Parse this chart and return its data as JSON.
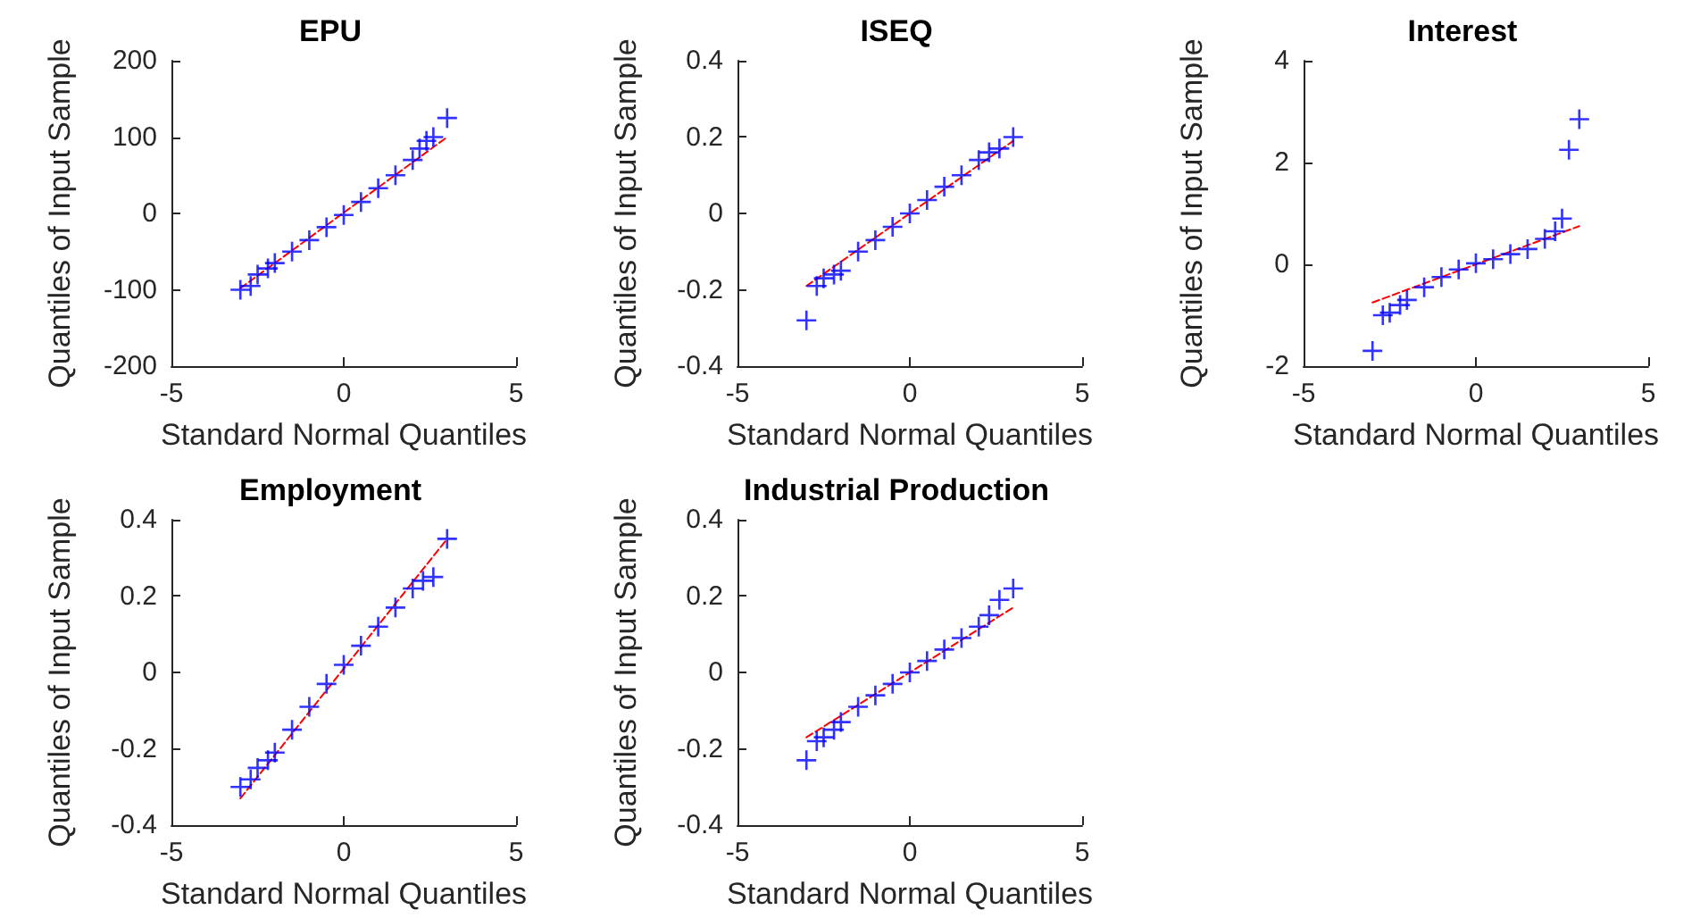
{
  "chart_data": [
    {
      "type": "scatter",
      "title": "EPU",
      "xlabel": "Standard Normal Quantiles",
      "ylabel": "Quantiles of Input Sample",
      "xlim": [
        -5,
        5
      ],
      "xticks": [
        -5,
        0,
        5
      ],
      "ylim": [
        -200,
        200
      ],
      "yticks": [
        -200,
        -100,
        0,
        100,
        200
      ],
      "marker": "cross",
      "series": [
        {
          "color": "#0000ff",
          "x": [
            -3,
            -2.7,
            -2.5,
            -2.2,
            -2,
            -1.5,
            -1,
            -0.5,
            0,
            0.5,
            1,
            1.5,
            2,
            2.2,
            2.4,
            2.6,
            3
          ],
          "values": [
            -100,
            -95,
            -80,
            -72,
            -65,
            -50,
            -35,
            -18,
            -2,
            15,
            33,
            50,
            70,
            85,
            95,
            100,
            125
          ]
        },
        {
          "type": "line",
          "color": "#ff0000",
          "line_style": "dashed",
          "marker": "none",
          "x": [
            -3,
            3
          ],
          "values": [
            -98,
            100
          ]
        }
      ]
    },
    {
      "type": "scatter",
      "title": "ISEQ",
      "xlabel": "Standard Normal Quantiles",
      "ylabel": "Quantiles of Input Sample",
      "xlim": [
        -5,
        5
      ],
      "xticks": [
        -5,
        0,
        5
      ],
      "ylim": [
        -0.4,
        0.4
      ],
      "yticks": [
        -0.4,
        -0.2,
        0,
        0.2,
        0.4
      ],
      "marker": "cross",
      "series": [
        {
          "color": "#0000ff",
          "x": [
            -3,
            -2.7,
            -2.5,
            -2.2,
            -2,
            -1.5,
            -1,
            -0.5,
            0,
            0.5,
            1,
            1.5,
            2,
            2.3,
            2.6,
            3
          ],
          "values": [
            -0.28,
            -0.19,
            -0.17,
            -0.16,
            -0.15,
            -0.1,
            -0.07,
            -0.035,
            0,
            0.035,
            0.07,
            0.1,
            0.14,
            0.16,
            0.17,
            0.2
          ]
        },
        {
          "type": "line",
          "color": "#ff0000",
          "line_style": "dashed",
          "marker": "none",
          "x": [
            -3,
            3
          ],
          "values": [
            -0.19,
            0.19
          ]
        }
      ]
    },
    {
      "type": "scatter",
      "title": "Interest",
      "xlabel": "Standard Normal Quantiles",
      "ylabel": "Quantiles of Input Sample",
      "xlim": [
        -5,
        5
      ],
      "xticks": [
        -5,
        0,
        5
      ],
      "ylim": [
        -2,
        4
      ],
      "yticks": [
        -2,
        0,
        2,
        4
      ],
      "marker": "cross",
      "series": [
        {
          "color": "#0000ff",
          "x": [
            -3,
            -2.7,
            -2.5,
            -2.2,
            -2,
            -1.5,
            -1,
            -0.5,
            0,
            0.5,
            1,
            1.5,
            2,
            2.3,
            2.5,
            2.7,
            3
          ],
          "values": [
            -1.7,
            -1,
            -0.95,
            -0.8,
            -0.7,
            -0.45,
            -0.25,
            -0.1,
            0.02,
            0.1,
            0.2,
            0.3,
            0.5,
            0.65,
            0.9,
            2.25,
            2.85
          ]
        },
        {
          "type": "line",
          "color": "#ff0000",
          "line_style": "dashed",
          "marker": "none",
          "x": [
            -3,
            3
          ],
          "values": [
            -0.75,
            0.75
          ]
        }
      ]
    },
    {
      "type": "scatter",
      "title": "Employment",
      "xlabel": "Standard Normal Quantiles",
      "ylabel": "Quantiles of Input Sample",
      "xlim": [
        -5,
        5
      ],
      "xticks": [
        -5,
        0,
        5
      ],
      "ylim": [
        -0.4,
        0.4
      ],
      "yticks": [
        -0.4,
        -0.2,
        0,
        0.2,
        0.4
      ],
      "marker": "cross",
      "series": [
        {
          "color": "#0000ff",
          "x": [
            -3,
            -2.7,
            -2.5,
            -2.2,
            -2,
            -1.5,
            -1,
            -0.5,
            0,
            0.5,
            1,
            1.5,
            2,
            2.3,
            2.6,
            3
          ],
          "values": [
            -0.3,
            -0.28,
            -0.25,
            -0.23,
            -0.21,
            -0.15,
            -0.09,
            -0.03,
            0.02,
            0.07,
            0.12,
            0.17,
            0.22,
            0.24,
            0.25,
            0.35
          ]
        },
        {
          "type": "line",
          "color": "#ff0000",
          "line_style": "dashed",
          "marker": "none",
          "x": [
            -3,
            3
          ],
          "values": [
            -0.33,
            0.35
          ]
        }
      ]
    },
    {
      "type": "scatter",
      "title": "Industrial Production",
      "xlabel": "Standard Normal Quantiles",
      "ylabel": "Quantiles of Input Sample",
      "xlim": [
        -5,
        5
      ],
      "xticks": [
        -5,
        0,
        5
      ],
      "ylim": [
        -0.4,
        0.4
      ],
      "yticks": [
        -0.4,
        -0.2,
        0,
        0.2,
        0.4
      ],
      "marker": "cross",
      "series": [
        {
          "color": "#0000ff",
          "x": [
            -3,
            -2.7,
            -2.5,
            -2.2,
            -2,
            -1.5,
            -1,
            -0.5,
            0,
            0.5,
            1,
            1.5,
            2,
            2.3,
            2.6,
            3
          ],
          "values": [
            -0.23,
            -0.18,
            -0.17,
            -0.15,
            -0.13,
            -0.09,
            -0.06,
            -0.03,
            0,
            0.03,
            0.06,
            0.09,
            0.12,
            0.15,
            0.19,
            0.22
          ]
        },
        {
          "type": "line",
          "color": "#ff0000",
          "line_style": "dashed",
          "marker": "none",
          "x": [
            -3,
            3
          ],
          "values": [
            -0.17,
            0.17
          ]
        }
      ]
    }
  ]
}
